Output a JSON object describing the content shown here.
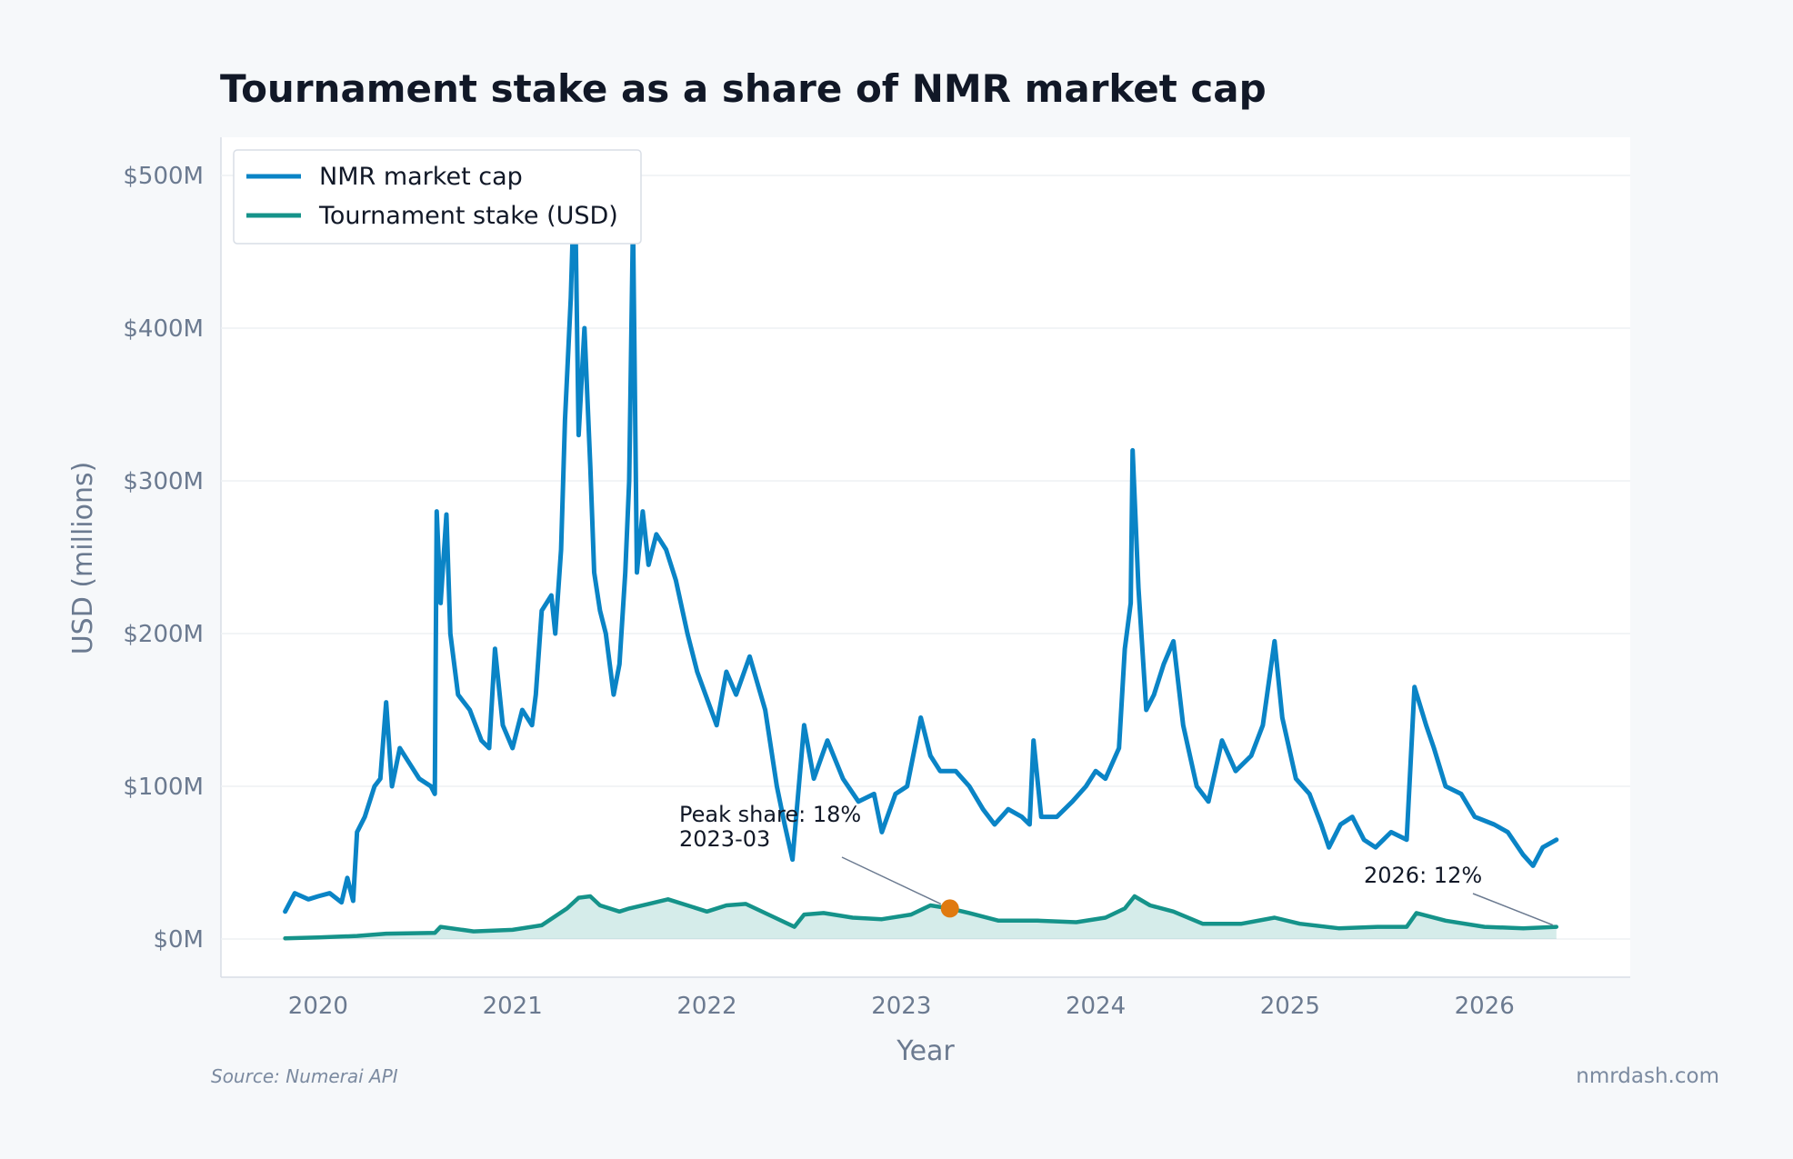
{
  "chart_data": {
    "type": "line",
    "title": "Tournament stake as a share of NMR market cap",
    "xlabel": "Year",
    "ylabel": "USD (millions)",
    "x_ticks": [
      "2020",
      "2021",
      "2022",
      "2023",
      "2024",
      "2025",
      "2026"
    ],
    "y_ticks": [
      "$0M",
      "$100M",
      "$200M",
      "$300M",
      "$400M",
      "$500M"
    ],
    "xlim": [
      2019.5,
      2026.75
    ],
    "ylim": [
      -25,
      525
    ],
    "grid": true,
    "legend_position": "top-left",
    "series": [
      {
        "name": "NMR market cap",
        "color": "#0a84c6",
        "points": [
          [
            2019.83,
            18
          ],
          [
            2019.88,
            30
          ],
          [
            2019.95,
            26
          ],
          [
            2020.0,
            28
          ],
          [
            2020.06,
            30
          ],
          [
            2020.12,
            24
          ],
          [
            2020.15,
            40
          ],
          [
            2020.18,
            25
          ],
          [
            2020.2,
            70
          ],
          [
            2020.24,
            80
          ],
          [
            2020.29,
            100
          ],
          [
            2020.32,
            105
          ],
          [
            2020.35,
            155
          ],
          [
            2020.38,
            100
          ],
          [
            2020.42,
            125
          ],
          [
            2020.47,
            115
          ],
          [
            2020.52,
            105
          ],
          [
            2020.58,
            100
          ],
          [
            2020.6,
            95
          ],
          [
            2020.61,
            280
          ],
          [
            2020.63,
            220
          ],
          [
            2020.66,
            278
          ],
          [
            2020.68,
            200
          ],
          [
            2020.72,
            160
          ],
          [
            2020.78,
            150
          ],
          [
            2020.84,
            130
          ],
          [
            2020.88,
            125
          ],
          [
            2020.91,
            190
          ],
          [
            2020.95,
            140
          ],
          [
            2021.0,
            125
          ],
          [
            2021.05,
            150
          ],
          [
            2021.1,
            140
          ],
          [
            2021.12,
            160
          ],
          [
            2021.15,
            215
          ],
          [
            2021.2,
            225
          ],
          [
            2021.22,
            200
          ],
          [
            2021.25,
            255
          ],
          [
            2021.27,
            340
          ],
          [
            2021.3,
            420
          ],
          [
            2021.32,
            505
          ],
          [
            2021.34,
            330
          ],
          [
            2021.37,
            400
          ],
          [
            2021.4,
            310
          ],
          [
            2021.42,
            240
          ],
          [
            2021.45,
            215
          ],
          [
            2021.48,
            200
          ],
          [
            2021.52,
            160
          ],
          [
            2021.55,
            180
          ],
          [
            2021.58,
            240
          ],
          [
            2021.6,
            300
          ],
          [
            2021.62,
            470
          ],
          [
            2021.64,
            240
          ],
          [
            2021.67,
            280
          ],
          [
            2021.7,
            245
          ],
          [
            2021.74,
            265
          ],
          [
            2021.79,
            255
          ],
          [
            2021.84,
            235
          ],
          [
            2021.9,
            200
          ],
          [
            2021.95,
            175
          ],
          [
            2022.05,
            140
          ],
          [
            2022.1,
            175
          ],
          [
            2022.15,
            160
          ],
          [
            2022.22,
            185
          ],
          [
            2022.3,
            150
          ],
          [
            2022.36,
            100
          ],
          [
            2022.4,
            75
          ],
          [
            2022.44,
            52
          ],
          [
            2022.5,
            140
          ],
          [
            2022.55,
            105
          ],
          [
            2022.62,
            130
          ],
          [
            2022.7,
            105
          ],
          [
            2022.78,
            90
          ],
          [
            2022.86,
            95
          ],
          [
            2022.9,
            70
          ],
          [
            2022.97,
            95
          ],
          [
            2023.03,
            100
          ],
          [
            2023.1,
            145
          ],
          [
            2023.15,
            120
          ],
          [
            2023.2,
            110
          ],
          [
            2023.28,
            110
          ],
          [
            2023.35,
            100
          ],
          [
            2023.42,
            85
          ],
          [
            2023.48,
            75
          ],
          [
            2023.55,
            85
          ],
          [
            2023.62,
            80
          ],
          [
            2023.66,
            75
          ],
          [
            2023.68,
            130
          ],
          [
            2023.72,
            80
          ],
          [
            2023.8,
            80
          ],
          [
            2023.88,
            90
          ],
          [
            2023.95,
            100
          ],
          [
            2024.0,
            110
          ],
          [
            2024.05,
            105
          ],
          [
            2024.12,
            125
          ],
          [
            2024.15,
            190
          ],
          [
            2024.18,
            220
          ],
          [
            2024.19,
            320
          ],
          [
            2024.22,
            230
          ],
          [
            2024.26,
            150
          ],
          [
            2024.3,
            160
          ],
          [
            2024.35,
            180
          ],
          [
            2024.4,
            195
          ],
          [
            2024.45,
            140
          ],
          [
            2024.52,
            100
          ],
          [
            2024.58,
            90
          ],
          [
            2024.65,
            130
          ],
          [
            2024.72,
            110
          ],
          [
            2024.8,
            120
          ],
          [
            2024.86,
            140
          ],
          [
            2024.92,
            195
          ],
          [
            2024.96,
            145
          ],
          [
            2025.03,
            105
          ],
          [
            2025.1,
            95
          ],
          [
            2025.16,
            75
          ],
          [
            2025.2,
            60
          ],
          [
            2025.26,
            75
          ],
          [
            2025.32,
            80
          ],
          [
            2025.38,
            65
          ],
          [
            2025.44,
            60
          ],
          [
            2025.52,
            70
          ],
          [
            2025.6,
            65
          ],
          [
            2025.64,
            165
          ],
          [
            2025.7,
            140
          ],
          [
            2025.74,
            125
          ],
          [
            2025.8,
            100
          ],
          [
            2025.88,
            95
          ],
          [
            2025.95,
            80
          ],
          [
            2026.05,
            75
          ],
          [
            2026.12,
            70
          ],
          [
            2026.2,
            55
          ],
          [
            2026.25,
            48
          ],
          [
            2026.3,
            60
          ],
          [
            2026.37,
            65
          ]
        ]
      },
      {
        "name": "Tournament stake (USD)",
        "color": "#15938a",
        "points": [
          [
            2019.83,
            0.5
          ],
          [
            2020.0,
            1
          ],
          [
            2020.2,
            2
          ],
          [
            2020.35,
            3.5
          ],
          [
            2020.6,
            4
          ],
          [
            2020.63,
            8
          ],
          [
            2020.8,
            5
          ],
          [
            2021.0,
            6
          ],
          [
            2021.15,
            9
          ],
          [
            2021.28,
            20
          ],
          [
            2021.34,
            27
          ],
          [
            2021.4,
            28
          ],
          [
            2021.45,
            22
          ],
          [
            2021.55,
            18
          ],
          [
            2021.6,
            20
          ],
          [
            2021.7,
            23
          ],
          [
            2021.8,
            26
          ],
          [
            2021.9,
            22
          ],
          [
            2022.0,
            18
          ],
          [
            2022.1,
            22
          ],
          [
            2022.2,
            23
          ],
          [
            2022.35,
            14
          ],
          [
            2022.45,
            8
          ],
          [
            2022.5,
            16
          ],
          [
            2022.6,
            17
          ],
          [
            2022.75,
            14
          ],
          [
            2022.9,
            13
          ],
          [
            2023.05,
            16
          ],
          [
            2023.15,
            22
          ],
          [
            2023.25,
            20
          ],
          [
            2023.35,
            17
          ],
          [
            2023.5,
            12
          ],
          [
            2023.7,
            12
          ],
          [
            2023.9,
            11
          ],
          [
            2024.05,
            14
          ],
          [
            2024.15,
            20
          ],
          [
            2024.2,
            28
          ],
          [
            2024.28,
            22
          ],
          [
            2024.4,
            18
          ],
          [
            2024.55,
            10
          ],
          [
            2024.75,
            10
          ],
          [
            2024.92,
            14
          ],
          [
            2025.05,
            10
          ],
          [
            2025.25,
            7
          ],
          [
            2025.45,
            8
          ],
          [
            2025.6,
            8
          ],
          [
            2025.65,
            17
          ],
          [
            2025.8,
            12
          ],
          [
            2026.0,
            8
          ],
          [
            2026.2,
            7
          ],
          [
            2026.37,
            8
          ]
        ]
      }
    ],
    "annotations": [
      {
        "lines": [
          "Peak share: 18%",
          "2023-03"
        ],
        "x": 2023.25,
        "y": 20,
        "marker_color": "#e07a10"
      },
      {
        "lines": [
          "2026: 12%"
        ],
        "x": 2026.37,
        "y": 8
      }
    ],
    "fill_under": "Tournament stake (USD)"
  },
  "footer": {
    "source": "Source: Numerai API",
    "brand": "nmrdash.com"
  }
}
